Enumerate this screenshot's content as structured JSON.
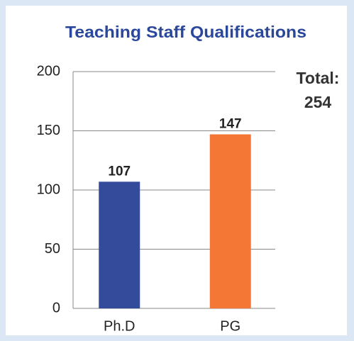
{
  "chart_data": {
    "type": "bar",
    "title": "Teaching Staff Qualifications",
    "categories": [
      "Ph.D",
      "PG"
    ],
    "values": [
      107,
      147
    ],
    "colors": [
      "#344b9b",
      "#f47735"
    ],
    "ylim": [
      0,
      200
    ],
    "yticks": [
      0,
      50,
      100,
      150,
      200
    ],
    "grid": true,
    "annotation": {
      "label": "Total:",
      "value": 254
    }
  }
}
